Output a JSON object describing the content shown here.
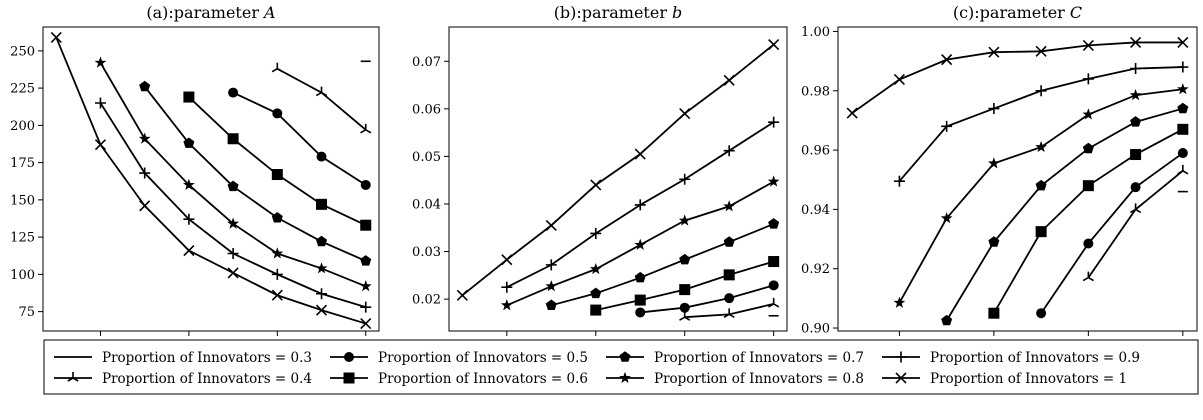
{
  "chart_data": [
    {
      "type": "line",
      "title": "(a):parameter ",
      "title_italic": "A",
      "xlim": [
        2.7,
        10.3
      ],
      "ylim": [
        62,
        266
      ],
      "xticks": [
        4,
        6,
        8,
        10
      ],
      "yticks": [
        75,
        100,
        125,
        150,
        175,
        200,
        225,
        250
      ],
      "series": [
        {
          "name": "Proportion of Innovators = 0.3",
          "marker": "none",
          "x": [
            10
          ],
          "y": [
            243
          ]
        },
        {
          "name": "Proportion of Innovators = 0.4",
          "marker": "tri",
          "x": [
            8,
            9,
            10
          ],
          "y": [
            238,
            222,
            197
          ]
        },
        {
          "name": "Proportion of Innovators = 0.5",
          "marker": "circle",
          "x": [
            7,
            8,
            9,
            10
          ],
          "y": [
            222,
            208,
            179,
            160
          ]
        },
        {
          "name": "Proportion of Innovators = 0.6",
          "marker": "square",
          "x": [
            6,
            7,
            8,
            9,
            10
          ],
          "y": [
            219,
            191,
            167,
            147,
            133
          ]
        },
        {
          "name": "Proportion of Innovators = 0.7",
          "marker": "pentagon",
          "x": [
            5,
            6,
            7,
            8,
            9,
            10
          ],
          "y": [
            226,
            188,
            159,
            138,
            122,
            109
          ]
        },
        {
          "name": "Proportion of Innovators = 0.8",
          "marker": "star",
          "x": [
            4,
            5,
            6,
            7,
            8,
            9,
            10
          ],
          "y": [
            242,
            191,
            160,
            134,
            114,
            104,
            92
          ]
        },
        {
          "name": "Proportion of Innovators = 0.9",
          "marker": "plus",
          "x": [
            4,
            5,
            6,
            7,
            8,
            9,
            10
          ],
          "y": [
            215,
            168,
            137,
            114,
            100,
            87,
            78
          ]
        },
        {
          "name": "Proportion of Innovators = 1",
          "marker": "x",
          "x": [
            3,
            4,
            5,
            6,
            7,
            8,
            9,
            10
          ],
          "y": [
            259,
            187,
            146,
            116,
            101,
            86,
            76,
            67
          ]
        }
      ]
    },
    {
      "type": "line",
      "title": "(b):parameter ",
      "title_italic": "b",
      "xlim": [
        2.7,
        10.3
      ],
      "ylim": [
        0.0133,
        0.0772
      ],
      "xticks": [
        4,
        6,
        8,
        10
      ],
      "yticks": [
        0.02,
        0.03,
        0.04,
        0.05,
        0.06,
        0.07
      ],
      "ytick_labels": [
        "0.02",
        "0.03",
        "0.04",
        "0.05",
        "0.06",
        "0.07"
      ],
      "series": [
        {
          "name": "Proportion of Innovators = 0.3",
          "marker": "none",
          "x": [
            10
          ],
          "y": [
            0.0165
          ]
        },
        {
          "name": "Proportion of Innovators = 0.4",
          "marker": "tri",
          "x": [
            8,
            9,
            10
          ],
          "y": [
            0.0162,
            0.0168,
            0.019
          ]
        },
        {
          "name": "Proportion of Innovators = 0.5",
          "marker": "circle",
          "x": [
            7,
            8,
            9,
            10
          ],
          "y": [
            0.0172,
            0.0182,
            0.0202,
            0.0229
          ]
        },
        {
          "name": "Proportion of Innovators = 0.6",
          "marker": "square",
          "x": [
            6,
            7,
            8,
            9,
            10
          ],
          "y": [
            0.0177,
            0.0198,
            0.022,
            0.0251,
            0.0279
          ]
        },
        {
          "name": "Proportion of Innovators = 0.7",
          "marker": "pentagon",
          "x": [
            5,
            6,
            7,
            8,
            9,
            10
          ],
          "y": [
            0.0187,
            0.0212,
            0.0245,
            0.0283,
            0.032,
            0.0358
          ]
        },
        {
          "name": "Proportion of Innovators = 0.8",
          "marker": "star",
          "x": [
            4,
            5,
            6,
            7,
            8,
            9,
            10
          ],
          "y": [
            0.0187,
            0.0227,
            0.0263,
            0.0314,
            0.0365,
            0.0395,
            0.0447
          ]
        },
        {
          "name": "Proportion of Innovators = 0.9",
          "marker": "plus",
          "x": [
            4,
            5,
            6,
            7,
            8,
            9,
            10
          ],
          "y": [
            0.0225,
            0.0272,
            0.0338,
            0.0398,
            0.0452,
            0.0512,
            0.0572
          ]
        },
        {
          "name": "Proportion of Innovators = 1",
          "marker": "x",
          "x": [
            3,
            4,
            5,
            6,
            7,
            8,
            9,
            10
          ],
          "y": [
            0.0208,
            0.0283,
            0.0355,
            0.044,
            0.0505,
            0.059,
            0.066,
            0.0735
          ]
        }
      ]
    },
    {
      "type": "line",
      "title": "(c):parameter ",
      "title_italic": "C",
      "xlim": [
        2.7,
        10.3
      ],
      "ylim": [
        0.899,
        1.0015
      ],
      "xticks": [
        4,
        6,
        8,
        10
      ],
      "yticks": [
        0.9,
        0.92,
        0.94,
        0.96,
        0.98,
        1.0
      ],
      "ytick_labels": [
        "0.90",
        "0.92",
        "0.94",
        "0.96",
        "0.98",
        "1.00"
      ],
      "series": [
        {
          "name": "Proportion of Innovators = 0.3",
          "marker": "none",
          "x": [
            10
          ],
          "y": [
            0.946
          ]
        },
        {
          "name": "Proportion of Innovators = 0.4",
          "marker": "tri",
          "x": [
            8,
            9,
            10
          ],
          "y": [
            0.917,
            0.94,
            0.953
          ]
        },
        {
          "name": "Proportion of Innovators = 0.5",
          "marker": "circle",
          "x": [
            7,
            8,
            9,
            10
          ],
          "y": [
            0.905,
            0.9285,
            0.9475,
            0.959
          ]
        },
        {
          "name": "Proportion of Innovators = 0.6",
          "marker": "square",
          "x": [
            6,
            7,
            8,
            9,
            10
          ],
          "y": [
            0.905,
            0.9325,
            0.948,
            0.9585,
            0.967
          ]
        },
        {
          "name": "Proportion of Innovators = 0.7",
          "marker": "pentagon",
          "x": [
            5,
            6,
            7,
            8,
            9,
            10
          ],
          "y": [
            0.9025,
            0.929,
            0.948,
            0.9605,
            0.9695,
            0.974
          ]
        },
        {
          "name": "Proportion of Innovators = 0.8",
          "marker": "star",
          "x": [
            4,
            5,
            6,
            7,
            8,
            9,
            10
          ],
          "y": [
            0.9085,
            0.937,
            0.9555,
            0.961,
            0.972,
            0.9785,
            0.9805
          ]
        },
        {
          "name": "Proportion of Innovators = 0.9",
          "marker": "plus",
          "x": [
            4,
            5,
            6,
            7,
            8,
            9,
            10
          ],
          "y": [
            0.9495,
            0.968,
            0.974,
            0.98,
            0.984,
            0.9875,
            0.988
          ]
        },
        {
          "name": "Proportion of Innovators = 1",
          "marker": "x",
          "x": [
            3,
            4,
            5,
            6,
            7,
            8,
            9,
            10
          ],
          "y": [
            0.9725,
            0.9838,
            0.9905,
            0.993,
            0.9933,
            0.9953,
            0.9963,
            0.9963
          ]
        }
      ]
    }
  ],
  "legend": {
    "placement": "bottom",
    "entries": [
      {
        "label": "Proportion of Innovators = 0.3",
        "marker": "none"
      },
      {
        "label": "Proportion of Innovators = 0.5",
        "marker": "circle"
      },
      {
        "label": "Proportion of Innovators = 0.7",
        "marker": "pentagon"
      },
      {
        "label": "Proportion of Innovators = 0.9",
        "marker": "plus"
      },
      {
        "label": "Proportion of Innovators = 0.4",
        "marker": "tri"
      },
      {
        "label": "Proportion of Innovators = 0.6",
        "marker": "square"
      },
      {
        "label": "Proportion of Innovators = 0.8",
        "marker": "star"
      },
      {
        "label": "Proportion of Innovators = 1",
        "marker": "x"
      }
    ]
  }
}
